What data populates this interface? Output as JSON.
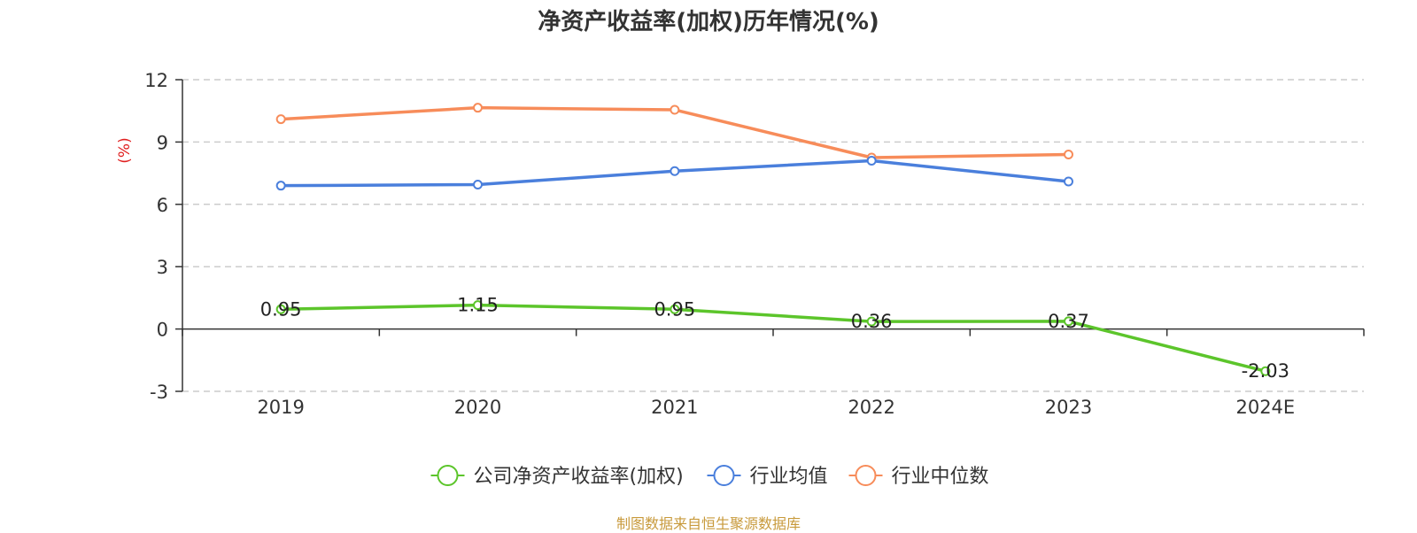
{
  "chart_data": {
    "type": "line",
    "title": "净资产收益率(加权)历年情况(%)",
    "ylabel": "(%)",
    "xlabel": "",
    "categories": [
      "2019",
      "2020",
      "2021",
      "2022",
      "2023",
      "2024E"
    ],
    "ylim": [
      -3,
      12
    ],
    "yticks": [
      -3,
      0,
      3,
      6,
      9,
      12
    ],
    "grid": true,
    "legend_position": "bottom",
    "series": [
      {
        "name": "公司净资产收益率(加权)",
        "color": "#5cc52b",
        "values": [
          0.95,
          1.15,
          0.95,
          0.36,
          0.37,
          -2.03
        ],
        "labels": [
          "0.95",
          "1.15",
          "0.95",
          "0.36",
          "0.37",
          "-2.03"
        ]
      },
      {
        "name": "行业均值",
        "color": "#4a7fdc",
        "values": [
          6.9,
          6.95,
          7.6,
          8.1,
          7.1,
          null
        ]
      },
      {
        "name": "行业中位数",
        "color": "#f78c5a",
        "values": [
          10.1,
          10.65,
          10.55,
          8.25,
          8.4,
          null
        ]
      }
    ],
    "source": "制图数据来自恒生聚源数据库"
  }
}
